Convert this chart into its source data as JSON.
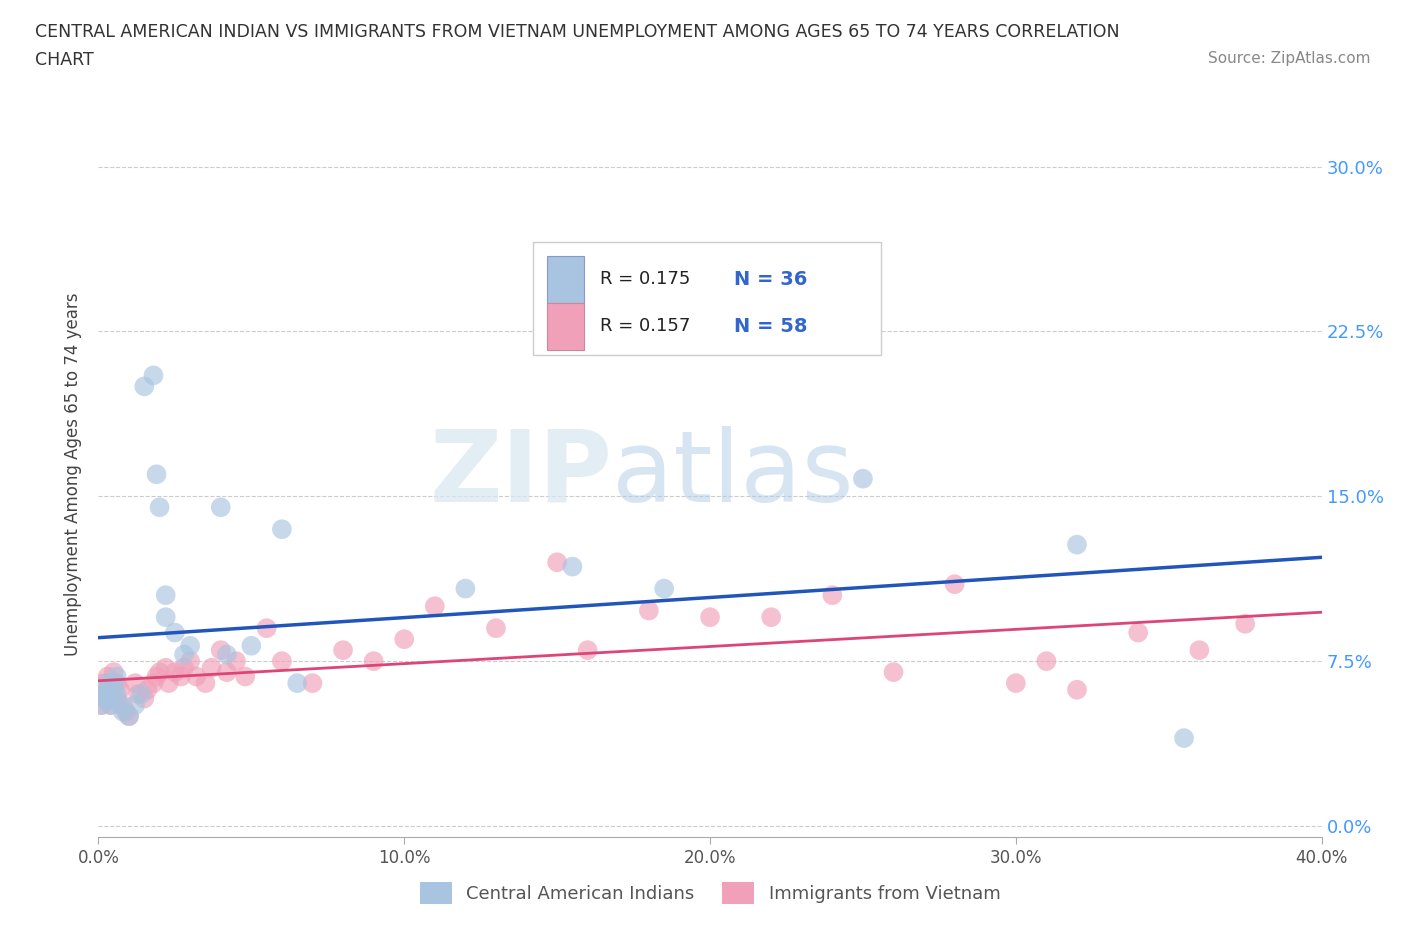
{
  "title_line1": "CENTRAL AMERICAN INDIAN VS IMMIGRANTS FROM VIETNAM UNEMPLOYMENT AMONG AGES 65 TO 74 YEARS CORRELATION",
  "title_line2": "CHART",
  "source": "Source: ZipAtlas.com",
  "ylabel": "Unemployment Among Ages 65 to 74 years",
  "xlabel_ticks": [
    "0.0%",
    "10.0%",
    "20.0%",
    "30.0%",
    "40.0%"
  ],
  "ylabel_ticks": [
    "0.0%",
    "7.5%",
    "15.0%",
    "22.5%",
    "30.0%"
  ],
  "xlim": [
    0.0,
    0.4
  ],
  "ylim": [
    -0.005,
    0.325
  ],
  "blue_R": 0.175,
  "blue_N": 36,
  "pink_R": 0.157,
  "pink_N": 58,
  "blue_color": "#a8c4e0",
  "pink_color": "#f0a0b8",
  "blue_line_color": "#2255bb",
  "pink_line_color": "#dd4477",
  "legend_label_blue": "Central American Indians",
  "legend_label_pink": "Immigrants from Vietnam",
  "watermark_zip": "ZIP",
  "watermark_atlas": "atlas",
  "blue_x": [
    0.001,
    0.002,
    0.002,
    0.003,
    0.003,
    0.004,
    0.004,
    0.005,
    0.005,
    0.006,
    0.006,
    0.007,
    0.008,
    0.01,
    0.012,
    0.014,
    0.015,
    0.018,
    0.019,
    0.02,
    0.022,
    0.022,
    0.025,
    0.028,
    0.03,
    0.04,
    0.042,
    0.05,
    0.06,
    0.065,
    0.12,
    0.155,
    0.185,
    0.25,
    0.32,
    0.355
  ],
  "blue_y": [
    0.055,
    0.058,
    0.06,
    0.062,
    0.065,
    0.055,
    0.058,
    0.06,
    0.065,
    0.068,
    0.06,
    0.055,
    0.052,
    0.05,
    0.055,
    0.06,
    0.2,
    0.205,
    0.16,
    0.145,
    0.095,
    0.105,
    0.088,
    0.078,
    0.082,
    0.145,
    0.078,
    0.082,
    0.135,
    0.065,
    0.108,
    0.118,
    0.108,
    0.158,
    0.128,
    0.04
  ],
  "pink_x": [
    0.001,
    0.001,
    0.002,
    0.002,
    0.003,
    0.003,
    0.004,
    0.004,
    0.005,
    0.005,
    0.006,
    0.006,
    0.007,
    0.008,
    0.009,
    0.01,
    0.012,
    0.013,
    0.015,
    0.016,
    0.018,
    0.019,
    0.02,
    0.022,
    0.023,
    0.025,
    0.027,
    0.028,
    0.03,
    0.032,
    0.035,
    0.037,
    0.04,
    0.042,
    0.045,
    0.048,
    0.055,
    0.06,
    0.07,
    0.08,
    0.09,
    0.1,
    0.11,
    0.13,
    0.15,
    0.16,
    0.18,
    0.2,
    0.22,
    0.24,
    0.26,
    0.28,
    0.3,
    0.31,
    0.32,
    0.34,
    0.36,
    0.375
  ],
  "pink_y": [
    0.055,
    0.06,
    0.058,
    0.065,
    0.062,
    0.068,
    0.055,
    0.06,
    0.065,
    0.07,
    0.058,
    0.065,
    0.062,
    0.055,
    0.052,
    0.05,
    0.065,
    0.06,
    0.058,
    0.062,
    0.065,
    0.068,
    0.07,
    0.072,
    0.065,
    0.07,
    0.068,
    0.072,
    0.075,
    0.068,
    0.065,
    0.072,
    0.08,
    0.07,
    0.075,
    0.068,
    0.09,
    0.075,
    0.065,
    0.08,
    0.075,
    0.085,
    0.1,
    0.09,
    0.12,
    0.08,
    0.098,
    0.095,
    0.095,
    0.105,
    0.07,
    0.11,
    0.065,
    0.075,
    0.062,
    0.088,
    0.08,
    0.092
  ]
}
